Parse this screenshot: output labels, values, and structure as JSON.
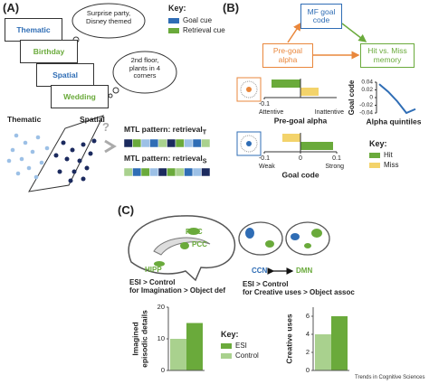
{
  "panel_a": {
    "label": "(A)",
    "cards": [
      {
        "text": "Thematic",
        "color": "#2f6db5"
      },
      {
        "text": "Birthday",
        "color": "#6aaa3b"
      },
      {
        "text": "Spatial",
        "color": "#2f6db5"
      },
      {
        "text": "Wedding",
        "color": "#6aaa3b"
      }
    ],
    "bubbles": [
      [
        "Surprise party,",
        "Disney themed"
      ],
      [
        "2nd floor,",
        "plants in 4",
        "corners"
      ]
    ],
    "key": {
      "title": "Key:",
      "items": [
        {
          "name": "Goal cue",
          "color": "#2f6db5"
        },
        {
          "name": "Retrieval cue",
          "color": "#6aaa3b"
        }
      ]
    },
    "space_labels": [
      "Thematic",
      "Spatial"
    ],
    "question": "?",
    "patterns": [
      {
        "text": "MTL pattern: retrieval",
        "sub": "T"
      },
      {
        "text": "MTL pattern: retrieval",
        "sub": "S"
      }
    ]
  },
  "panel_b": {
    "label": "(B)",
    "nodes": [
      "MF goal code",
      "Pre-goal alpha",
      "Hit vs. Miss memory"
    ],
    "key": {
      "title": "Key:",
      "items": [
        {
          "name": "Hit",
          "color": "#6aaa3b"
        },
        {
          "name": "Miss",
          "color": "#f3d36b"
        }
      ]
    },
    "alpha_chart": {
      "type": "bar",
      "title": "Pre-goal alpha",
      "values": [
        -0.08,
        0.05
      ],
      "xlim": [
        -0.1,
        0.1
      ],
      "xticks": [
        -0.1
      ],
      "end_labels": [
        "Attentive",
        "Inattentive"
      ]
    },
    "goal_chart": {
      "type": "bar",
      "title": "Goal code",
      "values": [
        0.09,
        -0.05
      ],
      "xlim": [
        -0.1,
        0.1
      ],
      "xticks": [
        -0.1,
        0,
        0.1
      ],
      "end_labels": [
        "Weak",
        "Strong"
      ]
    },
    "quintile_chart": {
      "type": "line",
      "color": "#2f6db5",
      "ylabel": "Goal code",
      "xlabel": "Alpha quintiles",
      "values": [
        0.035,
        0.015,
        -0.01,
        -0.04,
        -0.03
      ],
      "ylim": [
        -0.04,
        0.04
      ],
      "yticks": [
        0.04,
        0.02,
        0,
        -0.02,
        -0.04
      ]
    }
  },
  "panel_c": {
    "label": "(C)",
    "regions": [
      "PreC",
      "PCC",
      "HIPP"
    ],
    "networks": [
      "CCN",
      "DMN"
    ],
    "captions": [
      [
        "ESI > Control",
        "for Imagination > Object def"
      ],
      [
        "ESI > Control",
        "for Creative uses > Object assoc"
      ]
    ],
    "key": {
      "title": "Key:",
      "items": [
        {
          "name": "ESI",
          "color": "#6aaa3b"
        },
        {
          "name": "Control",
          "color": "#a9d18e"
        }
      ]
    },
    "charts": [
      {
        "type": "bar",
        "ylabel": [
          "Imagined",
          "episodic details"
        ],
        "values": [
          15,
          10
        ],
        "ylim": [
          0,
          20
        ],
        "yticks": [
          0,
          10,
          20
        ]
      },
      {
        "type": "bar",
        "ylabel": [
          "Creative uses"
        ],
        "values": [
          6,
          4
        ],
        "ylim": [
          0,
          7
        ],
        "yticks": [
          0,
          2,
          4,
          6
        ]
      }
    ]
  },
  "footer": "Trends in Cognitive Sciences"
}
